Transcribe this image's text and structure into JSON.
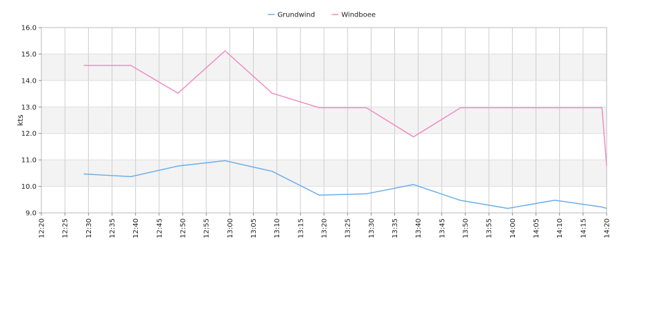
{
  "chart_data": {
    "type": "line",
    "ylabel": "kts",
    "xlabel": "",
    "title": "",
    "legend_position": "top-center",
    "grid": true,
    "ylim": [
      9.0,
      16.0
    ],
    "y_ticks": [
      "9.0",
      "10.0",
      "11.0",
      "12.0",
      "13.0",
      "14.0",
      "15.0",
      "16.0"
    ],
    "x_ticks": [
      "12:20",
      "12:25",
      "12:30",
      "12:35",
      "12:40",
      "12:45",
      "12:50",
      "12:55",
      "13:00",
      "13:05",
      "13:10",
      "13:15",
      "13:20",
      "13:25",
      "13:30",
      "13:35",
      "13:40",
      "13:45",
      "13:50",
      "13:55",
      "14:00",
      "14:05",
      "14:10",
      "14:15",
      "14:20"
    ],
    "xlim": [
      "12:20",
      "14:20"
    ],
    "series": [
      {
        "name": "Grundwind",
        "color": "#6aaeea",
        "x": [
          "12:29",
          "12:39",
          "12:49",
          "12:59",
          "13:09",
          "13:19",
          "13:29",
          "13:39",
          "13:49",
          "13:59",
          "14:09",
          "14:19",
          "14:20"
        ],
        "values": [
          10.47,
          10.37,
          10.77,
          10.97,
          10.57,
          9.67,
          9.72,
          10.07,
          9.47,
          9.17,
          9.48,
          9.22,
          9.17
        ]
      },
      {
        "name": "Windboee",
        "color": "#f08cc0",
        "x": [
          "12:29",
          "12:39",
          "12:49",
          "12:59",
          "13:09",
          "13:19",
          "13:29",
          "13:39",
          "13:49",
          "13:59",
          "14:09",
          "14:19",
          "14:20"
        ],
        "values": [
          14.57,
          14.57,
          13.52,
          15.12,
          13.52,
          12.97,
          12.97,
          11.87,
          12.97,
          12.97,
          12.97,
          12.97,
          10.77
        ]
      }
    ]
  }
}
